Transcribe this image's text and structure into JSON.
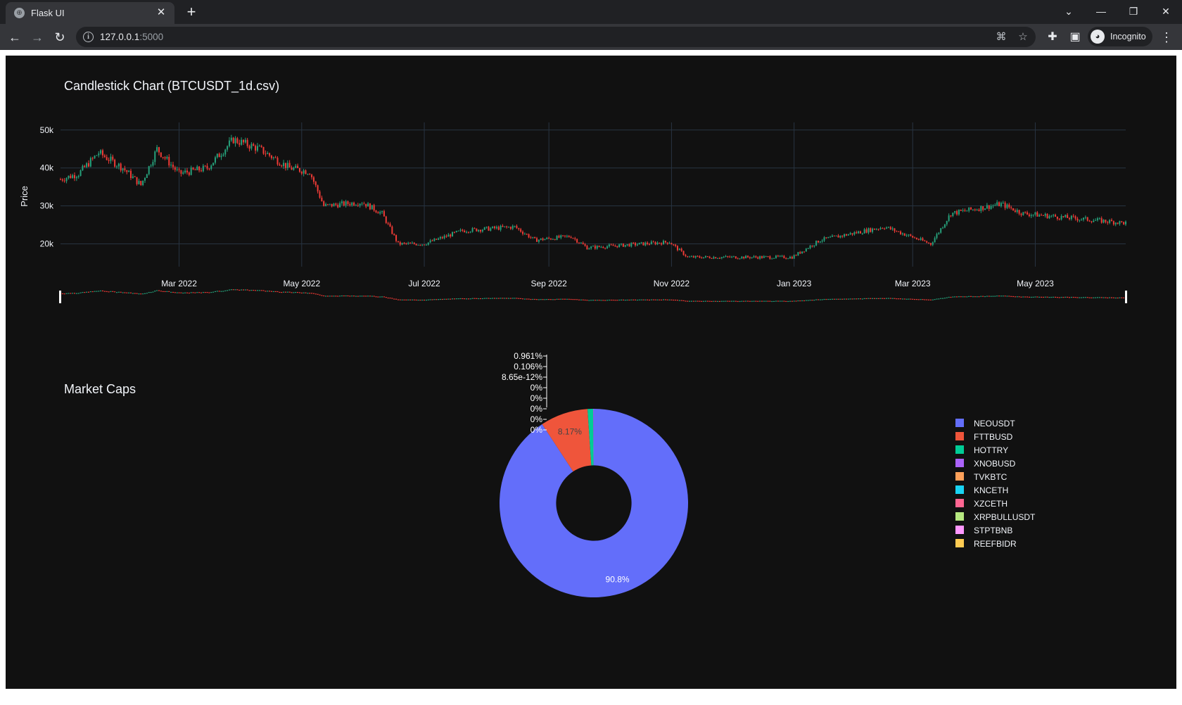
{
  "browser": {
    "tab_title": "Flask UI",
    "url_host": "127.0.0.1",
    "url_port": ":5000",
    "profile_label": "Incognito"
  },
  "candlestick": {
    "title": "Candlestick Chart (BTCUSDT_1d.csv)",
    "ylabel": "Price",
    "y_ticks": [
      "20k",
      "30k",
      "40k",
      "50k"
    ],
    "x_ticks": [
      "Mar 2022",
      "May 2022",
      "Jul 2022",
      "Sep 2022",
      "Nov 2022",
      "Jan 2023",
      "Mar 2023",
      "May 2023"
    ]
  },
  "pie": {
    "title": "Market Caps",
    "inside_labels": [
      "90.8%",
      "8.17%"
    ],
    "outside_labels": [
      "0.961%",
      "0.106%",
      "8.65e-12%",
      "0%",
      "0%",
      "0%",
      "0%",
      "0%"
    ]
  },
  "legend": [
    "NEOUSDT",
    "FTTBUSD",
    "HOTTRY",
    "XNOBUSD",
    "TVKBTC",
    "KNCETH",
    "XZCETH",
    "XRPBULLUSDT",
    "STPTBNB",
    "REEFBIDR"
  ],
  "colors": {
    "increasing": "#26a17b",
    "decreasing": "#ef3b36",
    "pie": [
      "#636efa",
      "#ef553b",
      "#00cc96",
      "#ab63fa",
      "#ffa15a",
      "#19d3f3",
      "#ff6692",
      "#b6e880",
      "#ff97ff",
      "#fecb52"
    ],
    "background": "#111111",
    "grid": "#283442"
  },
  "chart_data": [
    {
      "type": "candlestick",
      "title": "Candlestick Chart (BTCUSDT_1d.csv)",
      "ylabel": "Price",
      "ylim": [
        14000,
        52000
      ],
      "xlim": [
        "2022-01-01",
        "2023-06-15"
      ],
      "price_path_anchors": [
        {
          "date": "2022-01-01",
          "close": 37000
        },
        {
          "date": "2022-01-10",
          "close": 38500
        },
        {
          "date": "2022-01-20",
          "close": 44000
        },
        {
          "date": "2022-02-01",
          "close": 40000
        },
        {
          "date": "2022-02-10",
          "close": 35500
        },
        {
          "date": "2022-02-18",
          "close": 45000
        },
        {
          "date": "2022-03-01",
          "close": 38500
        },
        {
          "date": "2022-03-15",
          "close": 40000
        },
        {
          "date": "2022-03-28",
          "close": 47500
        },
        {
          "date": "2022-04-10",
          "close": 45000
        },
        {
          "date": "2022-04-25",
          "close": 40000
        },
        {
          "date": "2022-05-05",
          "close": 39000
        },
        {
          "date": "2022-05-12",
          "close": 30000
        },
        {
          "date": "2022-05-31",
          "close": 31000
        },
        {
          "date": "2022-06-10",
          "close": 28000
        },
        {
          "date": "2022-06-18",
          "close": 20000
        },
        {
          "date": "2022-07-01",
          "close": 20000
        },
        {
          "date": "2022-07-20",
          "close": 23500
        },
        {
          "date": "2022-08-15",
          "close": 24500
        },
        {
          "date": "2022-08-25",
          "close": 21000
        },
        {
          "date": "2022-09-12",
          "close": 22000
        },
        {
          "date": "2022-09-20",
          "close": 19000
        },
        {
          "date": "2022-10-31",
          "close": 20500
        },
        {
          "date": "2022-11-09",
          "close": 16500
        },
        {
          "date": "2022-12-31",
          "close": 16500
        },
        {
          "date": "2023-01-14",
          "close": 21000
        },
        {
          "date": "2023-02-15",
          "close": 24500
        },
        {
          "date": "2023-03-10",
          "close": 20000
        },
        {
          "date": "2023-03-20",
          "close": 28000
        },
        {
          "date": "2023-04-14",
          "close": 30500
        },
        {
          "date": "2023-04-25",
          "close": 28000
        },
        {
          "date": "2023-05-15",
          "close": 27000
        },
        {
          "date": "2023-06-15",
          "close": 25500
        }
      ]
    },
    {
      "type": "pie",
      "title": "Market Caps",
      "hole": 0.4,
      "labels": [
        "NEOUSDT",
        "FTTBUSD",
        "HOTTRY",
        "XNOBUSD",
        "TVKBTC",
        "KNCETH",
        "XZCETH",
        "XRPBULLUSDT",
        "STPTBNB",
        "REEFBIDR"
      ],
      "percent_labels": [
        "90.8%",
        "8.17%",
        "0.961%",
        "0.106%",
        "8.65e-12%",
        "0%",
        "0%",
        "0%",
        "0%",
        "0%"
      ],
      "values": [
        90.8,
        8.17,
        0.961,
        0.106,
        8.65e-12,
        0,
        0,
        0,
        0,
        0
      ]
    }
  ]
}
